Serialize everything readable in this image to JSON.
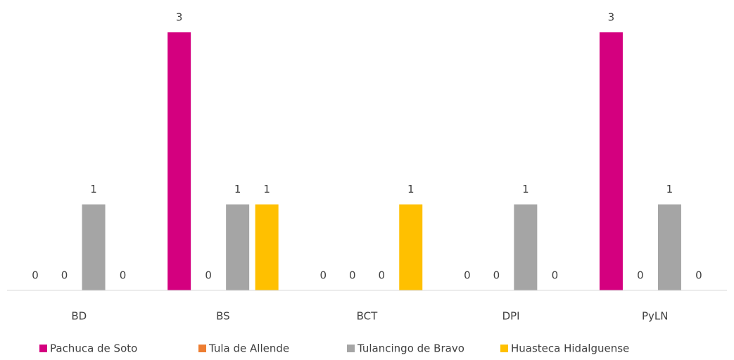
{
  "chart_data": {
    "type": "bar",
    "categories": [
      "BD",
      "BS",
      "BCT",
      "DPI",
      "PyLN"
    ],
    "series": [
      {
        "name": "Pachuca de Soto",
        "color": "#d4007f",
        "values": [
          0,
          3,
          0,
          0,
          3
        ]
      },
      {
        "name": "Tula de Allende",
        "color": "#ed7d31",
        "values": [
          0,
          0,
          0,
          0,
          0
        ]
      },
      {
        "name": "Tulancingo de Bravo",
        "color": "#a5a5a5",
        "values": [
          1,
          1,
          0,
          1,
          1
        ]
      },
      {
        "name": "Huasteca Hidalguense",
        "color": "#ffc000",
        "values": [
          0,
          1,
          1,
          0,
          0
        ]
      }
    ],
    "ylim": [
      0,
      3
    ],
    "legend": "bottom"
  }
}
